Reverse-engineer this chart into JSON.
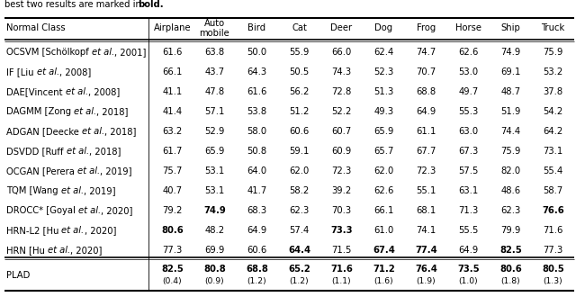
{
  "col_headers": [
    "Normal Class",
    "Airplane",
    "Auto\nmobile",
    "Bird",
    "Cat",
    "Deer",
    "Dog",
    "Frog",
    "Horse",
    "Ship",
    "Truck"
  ],
  "rows": [
    {
      "name": "OCSVM [Schölkopf ",
      "italic": "et al.",
      "year": ", 2001]",
      "values": [
        "61.6",
        "63.8",
        "50.0",
        "55.9",
        "66.0",
        "62.4",
        "74.7",
        "62.6",
        "74.9",
        "75.9"
      ],
      "bold": []
    },
    {
      "name": "IF [Liu ",
      "italic": "et al.",
      "year": ", 2008]",
      "values": [
        "66.1",
        "43.7",
        "64.3",
        "50.5",
        "74.3",
        "52.3",
        "70.7",
        "53.0",
        "69.1",
        "53.2"
      ],
      "bold": []
    },
    {
      "name": "DAE[Vincent ",
      "italic": "et al.",
      "year": ", 2008]",
      "values": [
        "41.1",
        "47.8",
        "61.6",
        "56.2",
        "72.8",
        "51.3",
        "68.8",
        "49.7",
        "48.7",
        "37.8"
      ],
      "bold": []
    },
    {
      "name": "DAGMM [Zong ",
      "italic": "et al.",
      "year": ", 2018]",
      "values": [
        "41.4",
        "57.1",
        "53.8",
        "51.2",
        "52.2",
        "49.3",
        "64.9",
        "55.3",
        "51.9",
        "54.2"
      ],
      "bold": []
    },
    {
      "name": "ADGAN [Deecke ",
      "italic": "et al.",
      "year": ", 2018]",
      "values": [
        "63.2",
        "52.9",
        "58.0",
        "60.6",
        "60.7",
        "65.9",
        "61.1",
        "63.0",
        "74.4",
        "64.2"
      ],
      "bold": []
    },
    {
      "name": "DSVDD [Ruff ",
      "italic": "et al.",
      "year": ", 2018]",
      "values": [
        "61.7",
        "65.9",
        "50.8",
        "59.1",
        "60.9",
        "65.7",
        "67.7",
        "67.3",
        "75.9",
        "73.1"
      ],
      "bold": []
    },
    {
      "name": "OCGAN [Perera ",
      "italic": "et al.",
      "year": ", 2019]",
      "values": [
        "75.7",
        "53.1",
        "64.0",
        "62.0",
        "72.3",
        "62.0",
        "72.3",
        "57.5",
        "82.0",
        "55.4"
      ],
      "bold": []
    },
    {
      "name": "TQM [Wang ",
      "italic": "et al.",
      "year": ", 2019]",
      "values": [
        "40.7",
        "53.1",
        "41.7",
        "58.2",
        "39.2",
        "62.6",
        "55.1",
        "63.1",
        "48.6",
        "58.7"
      ],
      "bold": []
    },
    {
      "name": "DROCC* [Goyal ",
      "italic": "et al.",
      "year": ", 2020]",
      "values": [
        "79.2",
        "74.9",
        "68.3",
        "62.3",
        "70.3",
        "66.1",
        "68.1",
        "71.3",
        "62.3",
        "76.6"
      ],
      "bold": [
        1,
        9
      ]
    },
    {
      "name": "HRN-L2 [Hu ",
      "italic": "et al.",
      "year": ", 2020]",
      "values": [
        "80.6",
        "48.2",
        "64.9",
        "57.4",
        "73.3",
        "61.0",
        "74.1",
        "55.5",
        "79.9",
        "71.6"
      ],
      "bold": [
        0,
        4
      ]
    },
    {
      "name": "HRN [Hu ",
      "italic": "et al.",
      "year": ", 2020]",
      "values": [
        "77.3",
        "69.9",
        "60.6",
        "64.4",
        "71.5",
        "67.4",
        "77.4",
        "64.9",
        "82.5",
        "77.3"
      ],
      "bold": [
        3,
        5,
        6,
        8
      ]
    }
  ],
  "plad_row": {
    "name": "PLAD",
    "main_values": [
      "82.5",
      "80.8",
      "68.8",
      "65.2",
      "71.6",
      "71.2",
      "76.4",
      "73.5",
      "80.6",
      "80.5"
    ],
    "sub_values": [
      "(0.4)",
      "(0.9)",
      "(1.2)",
      "(1.2)",
      "(1.1)",
      "(1.6)",
      "(1.9)",
      "(1.0)",
      "(1.8)",
      "(1.3)"
    ]
  },
  "fontsize": 7.2,
  "bg_color": "#ffffff",
  "line_color": "#000000"
}
